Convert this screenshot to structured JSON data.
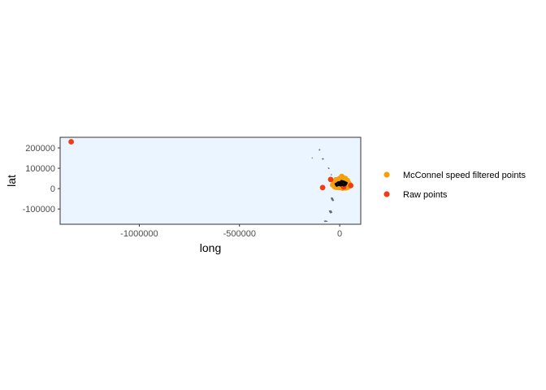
{
  "chart_data": {
    "type": "scatter",
    "title": "",
    "xlabel": "long",
    "ylabel": "lat",
    "xlim": [
      -1395000,
      105000
    ],
    "ylim": [
      -175000,
      252000
    ],
    "x_ticks": [
      -1000000,
      -500000,
      0
    ],
    "x_tick_labels": [
      "-1000000",
      "-500000",
      "0"
    ],
    "y_ticks": [
      -100000,
      0,
      100000,
      200000
    ],
    "y_tick_labels": [
      "-100000",
      "0",
      "100000",
      "200000"
    ],
    "grid": false,
    "legend_position": "right",
    "colors": {
      "panel_background": "#ebf5ff",
      "panel_border": "#333333",
      "land": "#5f6e7a",
      "filtered_points": "#f5a00a",
      "raw_points": "#f03c14",
      "track": "#000000"
    },
    "series": [
      {
        "name": "McConnel speed filtered points",
        "color": "#f5a00a",
        "points": [
          [
            15000,
            55000
          ],
          [
            28000,
            50000
          ],
          [
            38000,
            40000
          ],
          [
            45000,
            28000
          ],
          [
            50000,
            18000
          ],
          [
            42000,
            8000
          ],
          [
            30000,
            3000
          ],
          [
            18000,
            8000
          ],
          [
            8000,
            15000
          ],
          [
            0,
            25000
          ],
          [
            -10000,
            32000
          ],
          [
            -20000,
            30000
          ],
          [
            -28000,
            24000
          ],
          [
            -35000,
            18000
          ],
          [
            -25000,
            12000
          ],
          [
            -15000,
            6000
          ],
          [
            -5000,
            10000
          ],
          [
            5000,
            20000
          ],
          [
            12000,
            30000
          ],
          [
            20000,
            38000
          ],
          [
            -8000,
            45000
          ],
          [
            0,
            50000
          ],
          [
            10000,
            60000
          ],
          [
            22000,
            45000
          ],
          [
            35000,
            32000
          ],
          [
            40000,
            15000
          ],
          [
            -30000,
            36000
          ],
          [
            -18000,
            42000
          ],
          [
            -12000,
            20000
          ],
          [
            25000,
            22000
          ],
          [
            32000,
            12000
          ],
          [
            -2000,
            5000
          ],
          [
            14000,
            2000
          ],
          [
            48000,
            22000
          ],
          [
            6000,
            40000
          ],
          [
            -24000,
            8000
          ],
          [
            18000,
            52000
          ],
          [
            -6000,
            28000
          ],
          [
            28000,
            30000
          ],
          [
            38000,
            6000
          ]
        ]
      },
      {
        "name": "Raw points",
        "color": "#f03c14",
        "points": [
          [
            -1340000,
            230000
          ],
          [
            -85000,
            5000
          ],
          [
            -45000,
            45000
          ],
          [
            55000,
            15000
          ],
          [
            20000,
            8000
          ]
        ]
      }
    ],
    "track": [
      [
        -25000,
        22000
      ],
      [
        -15000,
        25000
      ],
      [
        -5000,
        32000
      ],
      [
        5000,
        28000
      ],
      [
        15000,
        32000
      ],
      [
        25000,
        28000
      ],
      [
        32000,
        22000
      ],
      [
        25000,
        18000
      ],
      [
        15000,
        20000
      ],
      [
        5000,
        15000
      ],
      [
        -5000,
        18000
      ],
      [
        -15000,
        14000
      ],
      [
        -20000,
        20000
      ],
      [
        -10000,
        30000
      ],
      [
        0,
        22000
      ],
      [
        10000,
        25000
      ],
      [
        20000,
        15000
      ],
      [
        30000,
        18000
      ],
      [
        35000,
        28000
      ],
      [
        20000,
        35000
      ],
      [
        8000,
        38000
      ],
      [
        -2000,
        26000
      ]
    ],
    "land": [
      [
        [
          -105000,
          192000
        ],
        [
          -100000,
          195000
        ],
        [
          -96000,
          190000
        ],
        [
          -102000,
          185000
        ]
      ],
      [
        [
          -140000,
          152000
        ],
        [
          -136000,
          154000
        ],
        [
          -134000,
          149000
        ],
        [
          -139000,
          147000
        ]
      ],
      [
        [
          -90000,
          148000
        ],
        [
          -82000,
          150000
        ],
        [
          -78000,
          144000
        ],
        [
          -86000,
          142000
        ]
      ],
      [
        [
          -60000,
          102000
        ],
        [
          -54000,
          104000
        ],
        [
          -50000,
          98000
        ],
        [
          -56000,
          96000
        ]
      ],
      [
        [
          -45000,
          70000
        ],
        [
          -40000,
          72000
        ],
        [
          -38000,
          66000
        ],
        [
          -43000,
          65000
        ]
      ],
      [
        [
          -28000,
          55000
        ],
        [
          -18000,
          56000
        ],
        [
          -12000,
          50000
        ],
        [
          -22000,
          48000
        ]
      ],
      [
        [
          -45000,
          -42000
        ],
        [
          -34000,
          -45000
        ],
        [
          -28000,
          -58000
        ],
        [
          -34000,
          -62000
        ],
        [
          -42000,
          -55000
        ]
      ],
      [
        [
          -55000,
          -108000
        ],
        [
          -42000,
          -106000
        ],
        [
          -36000,
          -118000
        ],
        [
          -48000,
          -122000
        ]
      ],
      [
        [
          -80000,
          -158000
        ],
        [
          -68000,
          -156000
        ],
        [
          -58000,
          -162000
        ],
        [
          -75000,
          -164000
        ]
      ]
    ]
  }
}
